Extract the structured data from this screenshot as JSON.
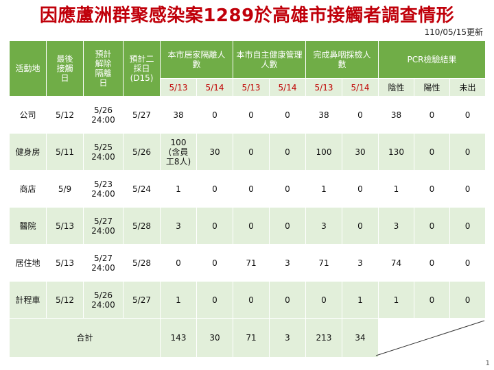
{
  "title": "因應蘆洲群聚感染案1289於高雄市接觸者調查情形",
  "update_date": "110/05/15更新",
  "headers": {
    "site": "活動地",
    "last_contact": "最後接觸日",
    "release": "預計解除隔離日",
    "second_test": "預計二採日(D15)",
    "home_isolation": "本市居家隔離人數",
    "self_health": "本市自主健康管理人數",
    "swab": "完成鼻咽採檢人數",
    "pcr": "PCR檢驗結果"
  },
  "date_labels": [
    "5/13",
    "5/14",
    "5/13",
    "5/14",
    "5/13",
    "5/14"
  ],
  "pcr_labels": [
    "陰性",
    "陽性",
    "未出"
  ],
  "rows": [
    {
      "site": "公司",
      "last": "5/12",
      "release_a": "5/26",
      "release_b": "24:00",
      "second": "5/27",
      "home_13": "38",
      "home_14": "0",
      "self_13": "0",
      "self_14": "0",
      "swab_13": "38",
      "swab_14": "0",
      "neg": "38",
      "pos": "0",
      "pending": "0"
    },
    {
      "site": "健身房",
      "last": "5/11",
      "release_a": "5/25",
      "release_b": "24:00",
      "second": "5/26",
      "home_13": "100",
      "home_13_note_a": "(含員",
      "home_13_note_b": "工8人)",
      "home_14": "30",
      "self_13": "0",
      "self_14": "0",
      "swab_13": "100",
      "swab_14": "30",
      "neg": "130",
      "pos": "0",
      "pending": "0"
    },
    {
      "site": "商店",
      "last": "5/9",
      "release_a": "5/23",
      "release_b": "24:00",
      "second": "5/24",
      "home_13": "1",
      "home_14": "0",
      "self_13": "0",
      "self_14": "0",
      "swab_13": "1",
      "swab_14": "0",
      "neg": "1",
      "pos": "0",
      "pending": "0"
    },
    {
      "site": "醫院",
      "last": "5/13",
      "release_a": "5/27",
      "release_b": "24:00",
      "second": "5/28",
      "home_13": "3",
      "home_14": "0",
      "self_13": "0",
      "self_14": "0",
      "swab_13": "3",
      "swab_14": "0",
      "neg": "3",
      "pos": "0",
      "pending": "0"
    },
    {
      "site": "居住地",
      "last": "5/13",
      "release_a": "5/27",
      "release_b": "24:00",
      "second": "5/28",
      "home_13": "0",
      "home_14": "0",
      "self_13": "71",
      "self_14": "3",
      "swab_13": "71",
      "swab_14": "3",
      "neg": "74",
      "pos": "0",
      "pending": "0"
    },
    {
      "site": "計程車",
      "last": "5/12",
      "release_a": "5/26",
      "release_b": "24:00",
      "second": "5/27",
      "home_13": "1",
      "home_14": "0",
      "self_13": "0",
      "self_14": "0",
      "swab_13": "0",
      "swab_14": "1",
      "neg": "1",
      "pos": "0",
      "pending": "0"
    }
  ],
  "total": {
    "label": "合計",
    "home_13": "143",
    "home_14": "30",
    "self_13": "71",
    "self_14": "3",
    "swab_13": "213",
    "swab_14": "34"
  },
  "page_number": "1"
}
